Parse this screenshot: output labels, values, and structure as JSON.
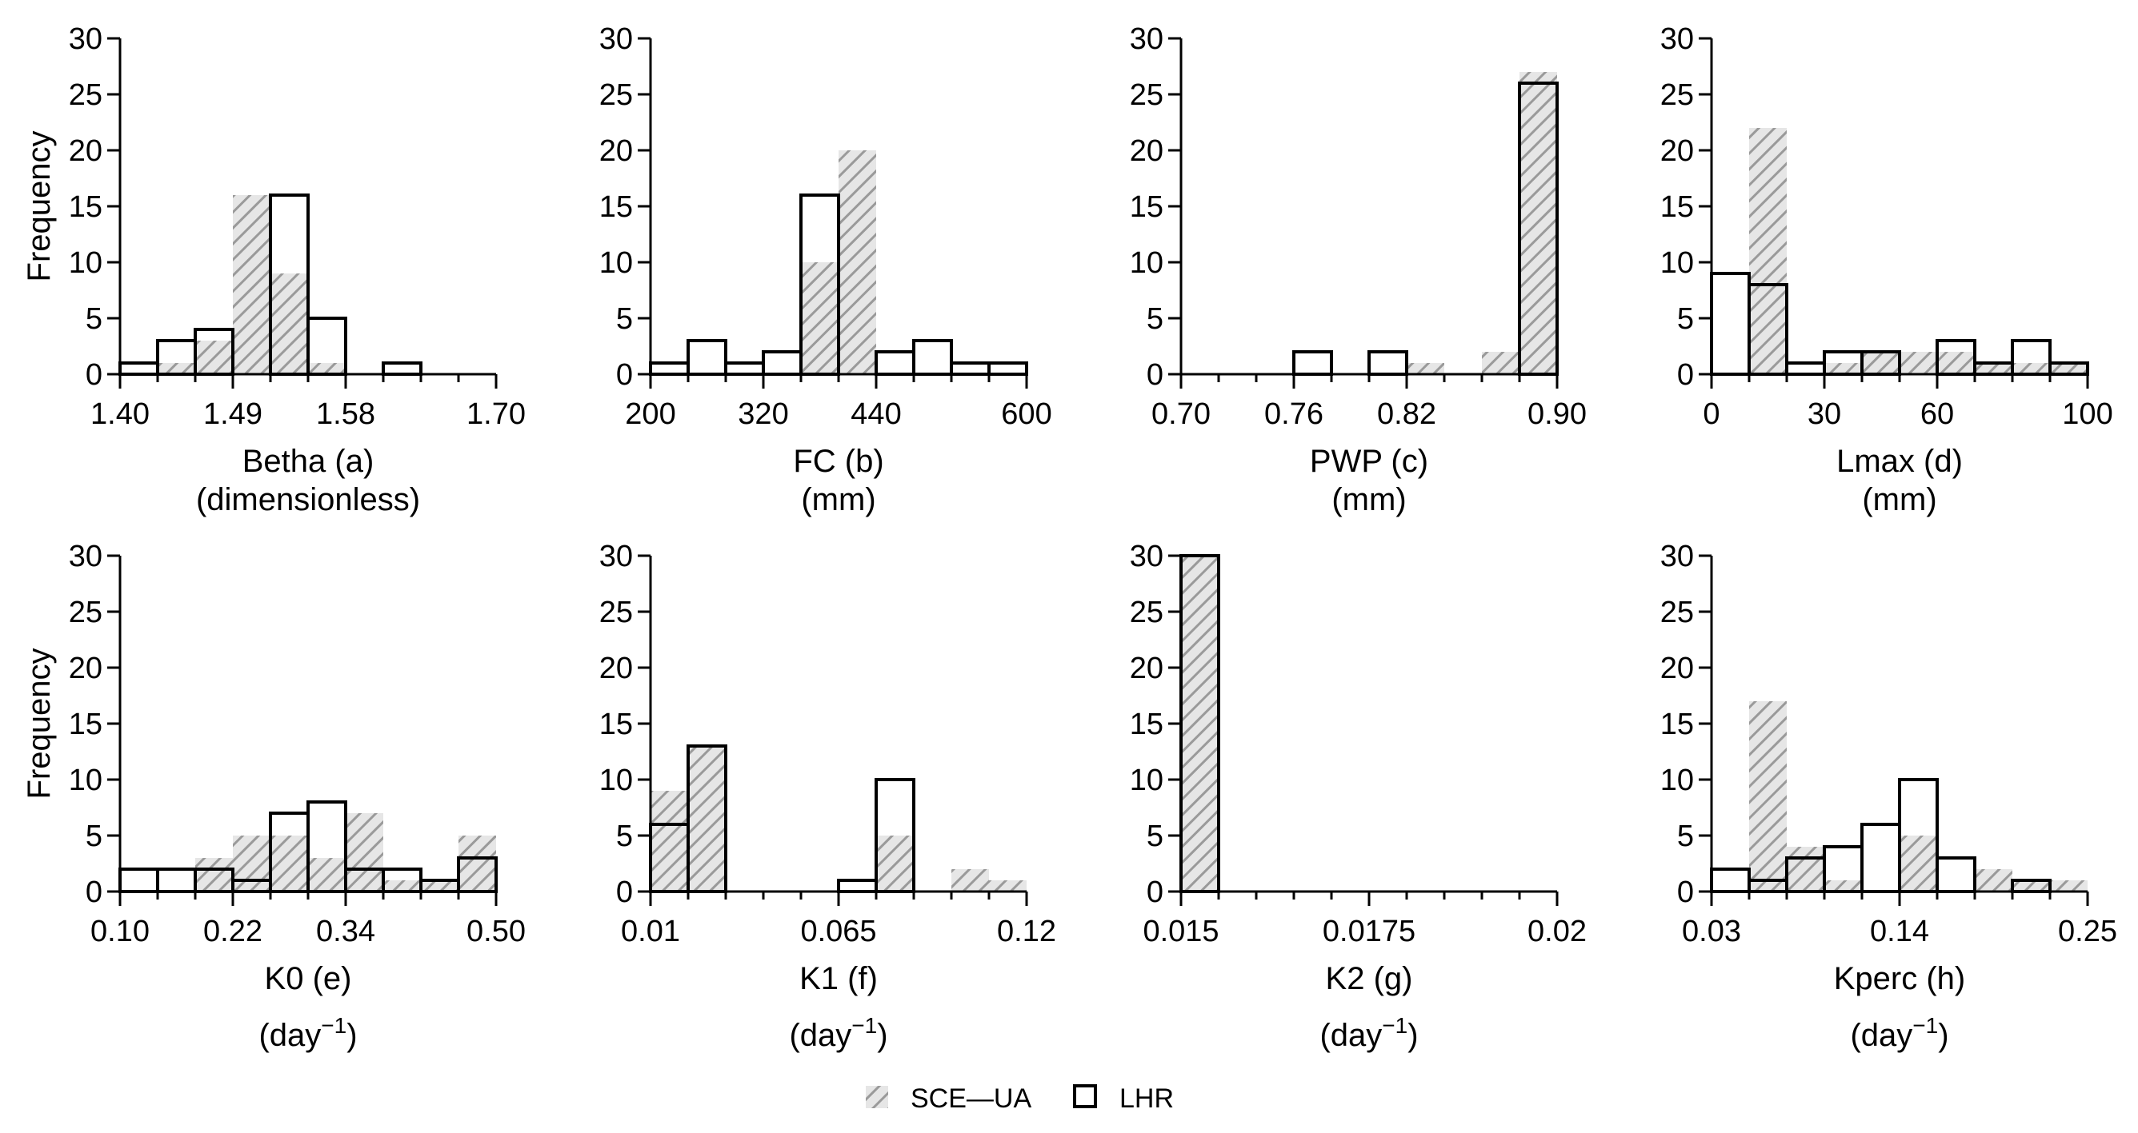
{
  "legend": {
    "sce_label": "SCE—UA",
    "lhr_label": "LHR"
  },
  "colors": {
    "sce_hatch": "#9a9a9a",
    "sce_fill": "#e6e6e6",
    "lhr_stroke": "#000000",
    "axis": "#000000"
  },
  "chart_data": [
    {
      "type": "bar",
      "title": "",
      "xlabel_line1": "Betha (a)",
      "xlabel_line2": "(dimensionless)",
      "ylabel": "Frequency",
      "xlim": [
        1.4,
        1.7
      ],
      "ylim": [
        0,
        30
      ],
      "xticks": [
        "1.40",
        "1.49",
        "1.58",
        "1.70"
      ],
      "xtick_values": [
        1.4,
        1.49,
        1.58,
        1.7
      ],
      "yticks": [
        "0",
        "5",
        "10",
        "15",
        "20",
        "25",
        "30"
      ],
      "bin_edges": [
        1.4,
        1.43,
        1.46,
        1.49,
        1.52,
        1.55,
        1.58,
        1.61,
        1.64,
        1.67,
        1.7
      ],
      "series": [
        {
          "name": "SCE—UA",
          "values": [
            0,
            1,
            3,
            16,
            9,
            1,
            0,
            0,
            0,
            0
          ]
        },
        {
          "name": "LHR",
          "values": [
            1,
            3,
            4,
            0,
            16,
            5,
            0,
            1,
            0,
            0
          ]
        }
      ]
    },
    {
      "type": "bar",
      "title": "",
      "xlabel_line1": "FC (b)",
      "xlabel_line2": "(mm)",
      "ylabel": "",
      "xlim": [
        200,
        600
      ],
      "ylim": [
        0,
        30
      ],
      "xticks": [
        "200",
        "320",
        "440",
        "600"
      ],
      "xtick_values": [
        200,
        320,
        440,
        600
      ],
      "yticks": [
        "0",
        "5",
        "10",
        "15",
        "20",
        "25",
        "30"
      ],
      "bin_edges": [
        200,
        240,
        280,
        320,
        360,
        400,
        440,
        480,
        520,
        560,
        600
      ],
      "series": [
        {
          "name": "SCE—UA",
          "values": [
            0,
            0,
            0,
            0,
            10,
            20,
            0,
            0,
            0,
            0
          ]
        },
        {
          "name": "LHR",
          "values": [
            1,
            3,
            1,
            2,
            16,
            0,
            2,
            3,
            1,
            1
          ]
        }
      ]
    },
    {
      "type": "bar",
      "title": "",
      "xlabel_line1": "PWP (c)",
      "xlabel_line2": "(mm)",
      "ylabel": "",
      "xlim": [
        0.7,
        0.9
      ],
      "ylim": [
        0,
        30
      ],
      "xticks": [
        "0.70",
        "0.76",
        "0.82",
        "0.90"
      ],
      "xtick_values": [
        0.7,
        0.76,
        0.82,
        0.9
      ],
      "yticks": [
        "0",
        "5",
        "10",
        "15",
        "20",
        "25",
        "30"
      ],
      "bin_edges": [
        0.7,
        0.72,
        0.74,
        0.76,
        0.78,
        0.8,
        0.82,
        0.84,
        0.86,
        0.88,
        0.9
      ],
      "series": [
        {
          "name": "SCE—UA",
          "values": [
            0,
            0,
            0,
            0,
            0,
            0,
            1,
            0,
            2,
            27
          ]
        },
        {
          "name": "LHR",
          "values": [
            0,
            0,
            0,
            2,
            0,
            2,
            0,
            0,
            0,
            26
          ]
        }
      ]
    },
    {
      "type": "bar",
      "title": "",
      "xlabel_line1": "Lmax (d)",
      "xlabel_line2": "(mm)",
      "ylabel": "",
      "xlim": [
        0,
        100
      ],
      "ylim": [
        0,
        30
      ],
      "xticks": [
        "0",
        "30",
        "60",
        "100"
      ],
      "xtick_values": [
        0,
        30,
        60,
        100
      ],
      "yticks": [
        "0",
        "5",
        "10",
        "15",
        "20",
        "25",
        "30"
      ],
      "bin_edges": [
        0,
        10,
        20,
        30,
        40,
        50,
        60,
        70,
        80,
        90,
        100
      ],
      "series": [
        {
          "name": "SCE—UA",
          "values": [
            0,
            22,
            0,
            1,
            2,
            2,
            2,
            1,
            1,
            1
          ]
        },
        {
          "name": "LHR",
          "values": [
            9,
            8,
            1,
            2,
            2,
            0,
            3,
            1,
            3,
            1
          ]
        }
      ]
    },
    {
      "type": "bar",
      "title": "",
      "xlabel_line1": "K0 (e)",
      "xlabel_unit": "(day",
      "xlabel_sup": "−1",
      "ylabel": "Frequency",
      "xlim": [
        0.1,
        0.5
      ],
      "ylim": [
        0,
        30
      ],
      "xticks": [
        "0.10",
        "0.22",
        "0.34",
        "0.50"
      ],
      "xtick_values": [
        0.1,
        0.22,
        0.34,
        0.5
      ],
      "yticks": [
        "0",
        "5",
        "10",
        "15",
        "20",
        "25",
        "30"
      ],
      "bin_edges": [
        0.1,
        0.14,
        0.18,
        0.22,
        0.26,
        0.3,
        0.34,
        0.38,
        0.42,
        0.46,
        0.5
      ],
      "series": [
        {
          "name": "SCE—UA",
          "values": [
            0,
            0,
            3,
            5,
            5,
            3,
            7,
            1,
            1,
            5
          ]
        },
        {
          "name": "LHR",
          "values": [
            2,
            2,
            2,
            1,
            7,
            8,
            2,
            2,
            1,
            3
          ]
        }
      ]
    },
    {
      "type": "bar",
      "title": "",
      "xlabel_line1": "K1 (f)",
      "xlabel_unit": "(day",
      "xlabel_sup": "−1",
      "ylabel": "",
      "xlim": [
        0.01,
        0.12
      ],
      "ylim": [
        0,
        30
      ],
      "xticks": [
        "0.01",
        "0.065",
        "0.12"
      ],
      "xtick_values": [
        0.01,
        0.065,
        0.12
      ],
      "yticks": [
        "0",
        "5",
        "10",
        "15",
        "20",
        "25",
        "30"
      ],
      "bin_edges": [
        0.01,
        0.021,
        0.032,
        0.043,
        0.054,
        0.065,
        0.076,
        0.087,
        0.098,
        0.109,
        0.12
      ],
      "series": [
        {
          "name": "SCE—UA",
          "values": [
            9,
            13,
            0,
            0,
            0,
            0,
            5,
            0,
            2,
            1
          ]
        },
        {
          "name": "LHR",
          "values": [
            6,
            13,
            0,
            0,
            0,
            1,
            10,
            0,
            0,
            0
          ]
        }
      ]
    },
    {
      "type": "bar",
      "title": "",
      "xlabel_line1": "K2 (g)",
      "xlabel_unit": "(day",
      "xlabel_sup": "−1",
      "ylabel": "",
      "xlim": [
        0.015,
        0.02
      ],
      "ylim": [
        0,
        30
      ],
      "xticks": [
        "0.015",
        "0.0175",
        "0.02"
      ],
      "xtick_values": [
        0.015,
        0.0175,
        0.02
      ],
      "yticks": [
        "0",
        "5",
        "10",
        "15",
        "20",
        "25",
        "30"
      ],
      "bin_edges": [
        0.015,
        0.0155,
        0.016,
        0.0165,
        0.017,
        0.0175,
        0.018,
        0.0185,
        0.019,
        0.0195,
        0.02
      ],
      "series": [
        {
          "name": "SCE—UA",
          "values": [
            30,
            0,
            0,
            0,
            0,
            0,
            0,
            0,
            0,
            0
          ]
        },
        {
          "name": "LHR",
          "values": [
            30,
            0,
            0,
            0,
            0,
            0,
            0,
            0,
            0,
            0
          ]
        }
      ]
    },
    {
      "type": "bar",
      "title": "",
      "xlabel_line1": "Kperc (h)",
      "xlabel_unit": "(day",
      "xlabel_sup": "−1",
      "ylabel": "",
      "xlim": [
        0.03,
        0.25
      ],
      "ylim": [
        0,
        30
      ],
      "xticks": [
        "0.03",
        "0.14",
        "0.25"
      ],
      "xtick_values": [
        0.03,
        0.14,
        0.25
      ],
      "yticks": [
        "0",
        "5",
        "10",
        "15",
        "20",
        "25",
        "30"
      ],
      "bin_edges": [
        0.03,
        0.052,
        0.074,
        0.096,
        0.118,
        0.14,
        0.162,
        0.184,
        0.206,
        0.228,
        0.25
      ],
      "series": [
        {
          "name": "SCE—UA",
          "values": [
            0,
            17,
            4,
            1,
            0,
            5,
            0,
            2,
            1,
            1
          ]
        },
        {
          "name": "LHR",
          "values": [
            2,
            1,
            3,
            4,
            6,
            10,
            3,
            0,
            1,
            0
          ]
        }
      ]
    }
  ]
}
